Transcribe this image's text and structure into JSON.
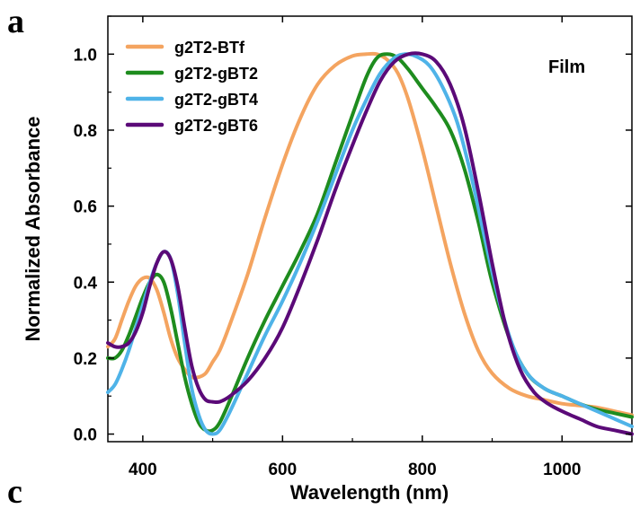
{
  "panel_labels": {
    "top": "a",
    "bottom": "c"
  },
  "chart_data": {
    "type": "line",
    "title": "",
    "xlabel": "Wavelength (nm)",
    "ylabel": "Normalized Absorbance",
    "xlim": [
      350,
      1100
    ],
    "ylim": [
      -0.02,
      1.1
    ],
    "xticks": [
      400,
      600,
      800,
      1000
    ],
    "xtick_labels": [
      "400",
      "600",
      "800",
      "1000"
    ],
    "yticks": [
      0.0,
      0.2,
      0.4,
      0.6,
      0.8,
      1.0
    ],
    "ytick_labels": [
      "0.0",
      "0.2",
      "0.4",
      "0.6",
      "0.8",
      "1.0"
    ],
    "grid": false,
    "legend_position": "top-left",
    "annotation": "Film",
    "series": [
      {
        "name": "g2T2-BTf",
        "color": "#F4A460",
        "x": [
          350,
          360,
          370,
          380,
          390,
          400,
          410,
          420,
          430,
          440,
          450,
          460,
          470,
          480,
          490,
          500,
          510,
          525,
          550,
          575,
          600,
          625,
          650,
          675,
          700,
          720,
          735,
          750,
          765,
          780,
          800,
          820,
          840,
          860,
          880,
          900,
          925,
          950,
          975,
          1000,
          1025,
          1050,
          1075,
          1100
        ],
        "y": [
          0.23,
          0.25,
          0.3,
          0.35,
          0.39,
          0.41,
          0.41,
          0.38,
          0.32,
          0.25,
          0.2,
          0.17,
          0.15,
          0.15,
          0.16,
          0.19,
          0.22,
          0.29,
          0.42,
          0.57,
          0.71,
          0.83,
          0.92,
          0.97,
          0.995,
          1.0,
          1.0,
          0.985,
          0.95,
          0.88,
          0.75,
          0.6,
          0.45,
          0.32,
          0.22,
          0.16,
          0.12,
          0.1,
          0.09,
          0.08,
          0.075,
          0.07,
          0.06,
          0.05
        ]
      },
      {
        "name": "g2T2-gBT2",
        "color": "#1E8C1E",
        "x": [
          350,
          360,
          370,
          380,
          390,
          400,
          410,
          420,
          430,
          440,
          450,
          460,
          470,
          480,
          490,
          500,
          510,
          525,
          550,
          575,
          600,
          625,
          650,
          675,
          700,
          720,
          735,
          750,
          765,
          780,
          800,
          820,
          840,
          860,
          880,
          900,
          925,
          950,
          975,
          1000,
          1025,
          1050,
          1075,
          1100
        ],
        "y": [
          0.2,
          0.2,
          0.22,
          0.26,
          0.31,
          0.36,
          0.4,
          0.42,
          0.4,
          0.33,
          0.24,
          0.15,
          0.08,
          0.03,
          0.01,
          0.01,
          0.03,
          0.09,
          0.2,
          0.3,
          0.39,
          0.48,
          0.58,
          0.71,
          0.84,
          0.94,
          0.99,
          1.0,
          0.99,
          0.96,
          0.91,
          0.86,
          0.8,
          0.7,
          0.56,
          0.4,
          0.25,
          0.16,
          0.12,
          0.1,
          0.08,
          0.065,
          0.055,
          0.045
        ]
      },
      {
        "name": "g2T2-gBT4",
        "color": "#4FB3E8",
        "x": [
          350,
          360,
          370,
          380,
          390,
          400,
          410,
          420,
          430,
          440,
          450,
          460,
          470,
          480,
          490,
          500,
          510,
          525,
          550,
          575,
          600,
          625,
          650,
          675,
          700,
          720,
          740,
          760,
          775,
          790,
          810,
          830,
          850,
          870,
          890,
          910,
          930,
          950,
          975,
          1000,
          1025,
          1050,
          1075,
          1100
        ],
        "y": [
          0.11,
          0.13,
          0.17,
          0.22,
          0.28,
          0.34,
          0.4,
          0.45,
          0.48,
          0.46,
          0.37,
          0.24,
          0.12,
          0.05,
          0.01,
          0.0,
          0.01,
          0.06,
          0.16,
          0.26,
          0.35,
          0.45,
          0.56,
          0.68,
          0.8,
          0.88,
          0.95,
          0.99,
          1.0,
          0.995,
          0.97,
          0.91,
          0.82,
          0.68,
          0.51,
          0.35,
          0.23,
          0.16,
          0.12,
          0.1,
          0.08,
          0.06,
          0.04,
          0.02
        ]
      },
      {
        "name": "g2T2-gBT6",
        "color": "#5B0A78",
        "x": [
          350,
          360,
          370,
          380,
          390,
          400,
          410,
          420,
          430,
          440,
          450,
          460,
          470,
          480,
          490,
          500,
          510,
          525,
          550,
          575,
          600,
          625,
          650,
          675,
          700,
          720,
          740,
          760,
          780,
          800,
          820,
          840,
          860,
          880,
          900,
          920,
          940,
          960,
          980,
          1000,
          1025,
          1050,
          1075,
          1100
        ],
        "y": [
          0.24,
          0.23,
          0.23,
          0.24,
          0.27,
          0.32,
          0.39,
          0.45,
          0.48,
          0.46,
          0.39,
          0.28,
          0.18,
          0.12,
          0.09,
          0.085,
          0.085,
          0.1,
          0.14,
          0.2,
          0.28,
          0.39,
          0.51,
          0.64,
          0.76,
          0.85,
          0.93,
          0.98,
          1.0,
          1.0,
          0.98,
          0.92,
          0.81,
          0.64,
          0.45,
          0.28,
          0.17,
          0.11,
          0.08,
          0.06,
          0.04,
          0.02,
          0.01,
          0.0
        ]
      }
    ]
  }
}
